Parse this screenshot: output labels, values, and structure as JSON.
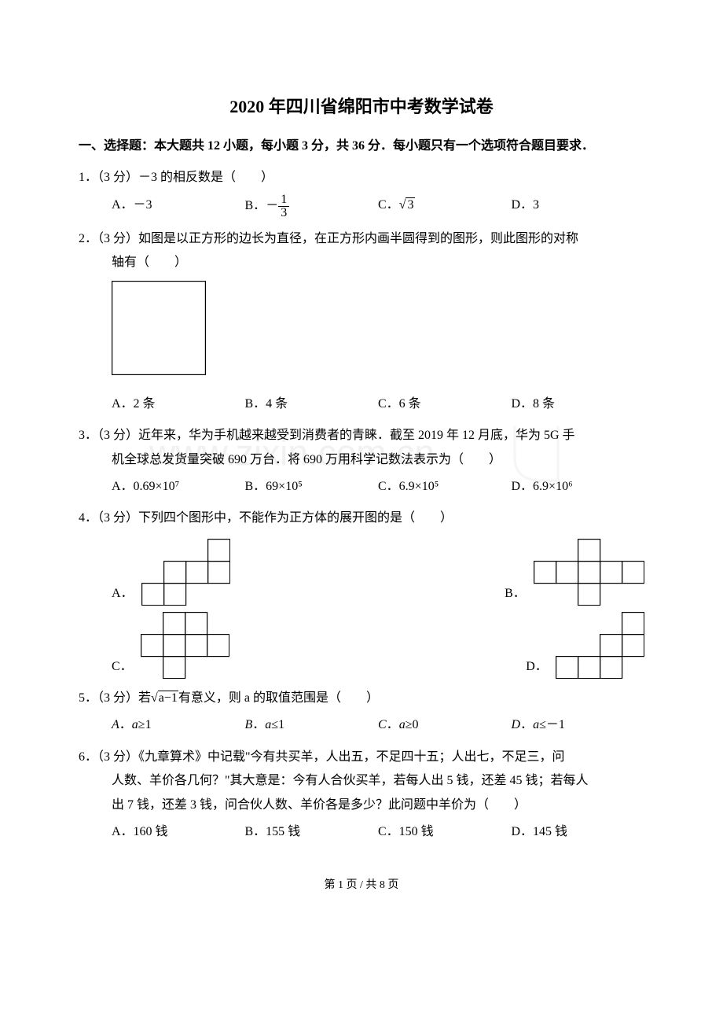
{
  "title": "2020 年四川省绵阳市中考数学试卷",
  "section": "一、选择题：本大题共 12 小题，每小题 3 分，共 36 分．每小题只有一个选项符合题目要求．",
  "q1": {
    "stem": "1．（3 分）－3 的相反数是（　　）",
    "A": "A．－3",
    "B_prefix": "B．",
    "C_prefix": "C．",
    "D": "D．3"
  },
  "q2": {
    "stem": "2．（3 分）如图是以正方形的边长为直径，在正方形内画半圆得到的图形，则此图形的对称",
    "stem2": "轴有（　　）",
    "A": "A．2 条",
    "B": "B．4 条",
    "C": "C．6 条",
    "D": "D．8 条"
  },
  "q3": {
    "line1": "3．（3 分）近年来，华为手机越来越受到消费者的青睐．截至 2019 年 12 月底，华为 5G 手",
    "line2": "机全球总发货量突破 690 万台．将 690 万用科学记数法表示为（　　）",
    "A": "A．0.69×10⁷",
    "B": "B．69×10⁵",
    "C": "C．6.9×10⁵",
    "D": "D．6.9×10⁶"
  },
  "q4": {
    "stem": "4．（3 分）下列四个图形中，不能作为正方体的展开图的是（　　）",
    "A": "A．",
    "B": "B．",
    "C": "C．",
    "D": "D．"
  },
  "q5": {
    "stem_pre": "5．（3 分）若",
    "stem_post": "有意义，则 a 的取值范围是（　　）",
    "A": "A．a≥1",
    "B": "B．a≤1",
    "C": "C．a≥0",
    "D": "D．a≤－1"
  },
  "q6": {
    "line1": "6．（3 分）《九章算术》中记载\"今有共买羊，人出五，不足四十五；人出七，不足三，问",
    "line2": "人数、羊价各几何？\"其大意是：今有人合伙买羊，若每人出 5 钱，还差 45 钱；若每人",
    "line3": "出 7 钱，还差 3 钱，问合伙人数、羊价各是多少？此问题中羊价为（　　）",
    "A": "A．160 钱",
    "B": "B．155 钱",
    "C": "C．150 钱",
    "D": "D．145 钱"
  },
  "footer": "第 1 页 / 共 8 页",
  "figure_q2": {
    "size": 120,
    "stroke": "#000000",
    "strokeWidth": 1.2
  },
  "nets": {
    "cell": 28,
    "stroke": "#000000",
    "strokeWidth": 1.2,
    "A": {
      "cols": 4,
      "rows": 3,
      "cells": [
        [
          3,
          0
        ],
        [
          1,
          1
        ],
        [
          2,
          1
        ],
        [
          3,
          1
        ],
        [
          0,
          2
        ],
        [
          1,
          2
        ]
      ]
    },
    "B": {
      "cols": 5,
      "rows": 3,
      "cells": [
        [
          2,
          0
        ],
        [
          0,
          1
        ],
        [
          1,
          1
        ],
        [
          2,
          1
        ],
        [
          3,
          1
        ],
        [
          4,
          1
        ],
        [
          2,
          2
        ]
      ]
    },
    "C": {
      "cols": 4,
      "rows": 3,
      "cells": [
        [
          1,
          0
        ],
        [
          2,
          0
        ],
        [
          0,
          1
        ],
        [
          1,
          1
        ],
        [
          2,
          1
        ],
        [
          3,
          1
        ],
        [
          1,
          2
        ]
      ]
    },
    "D": {
      "cols": 4,
      "rows": 3,
      "cells": [
        [
          3,
          0
        ],
        [
          2,
          1
        ],
        [
          3,
          1
        ],
        [
          0,
          2
        ],
        [
          1,
          2
        ],
        [
          2,
          2
        ]
      ]
    }
  },
  "watermark_text": "www.zixin.com.cn"
}
